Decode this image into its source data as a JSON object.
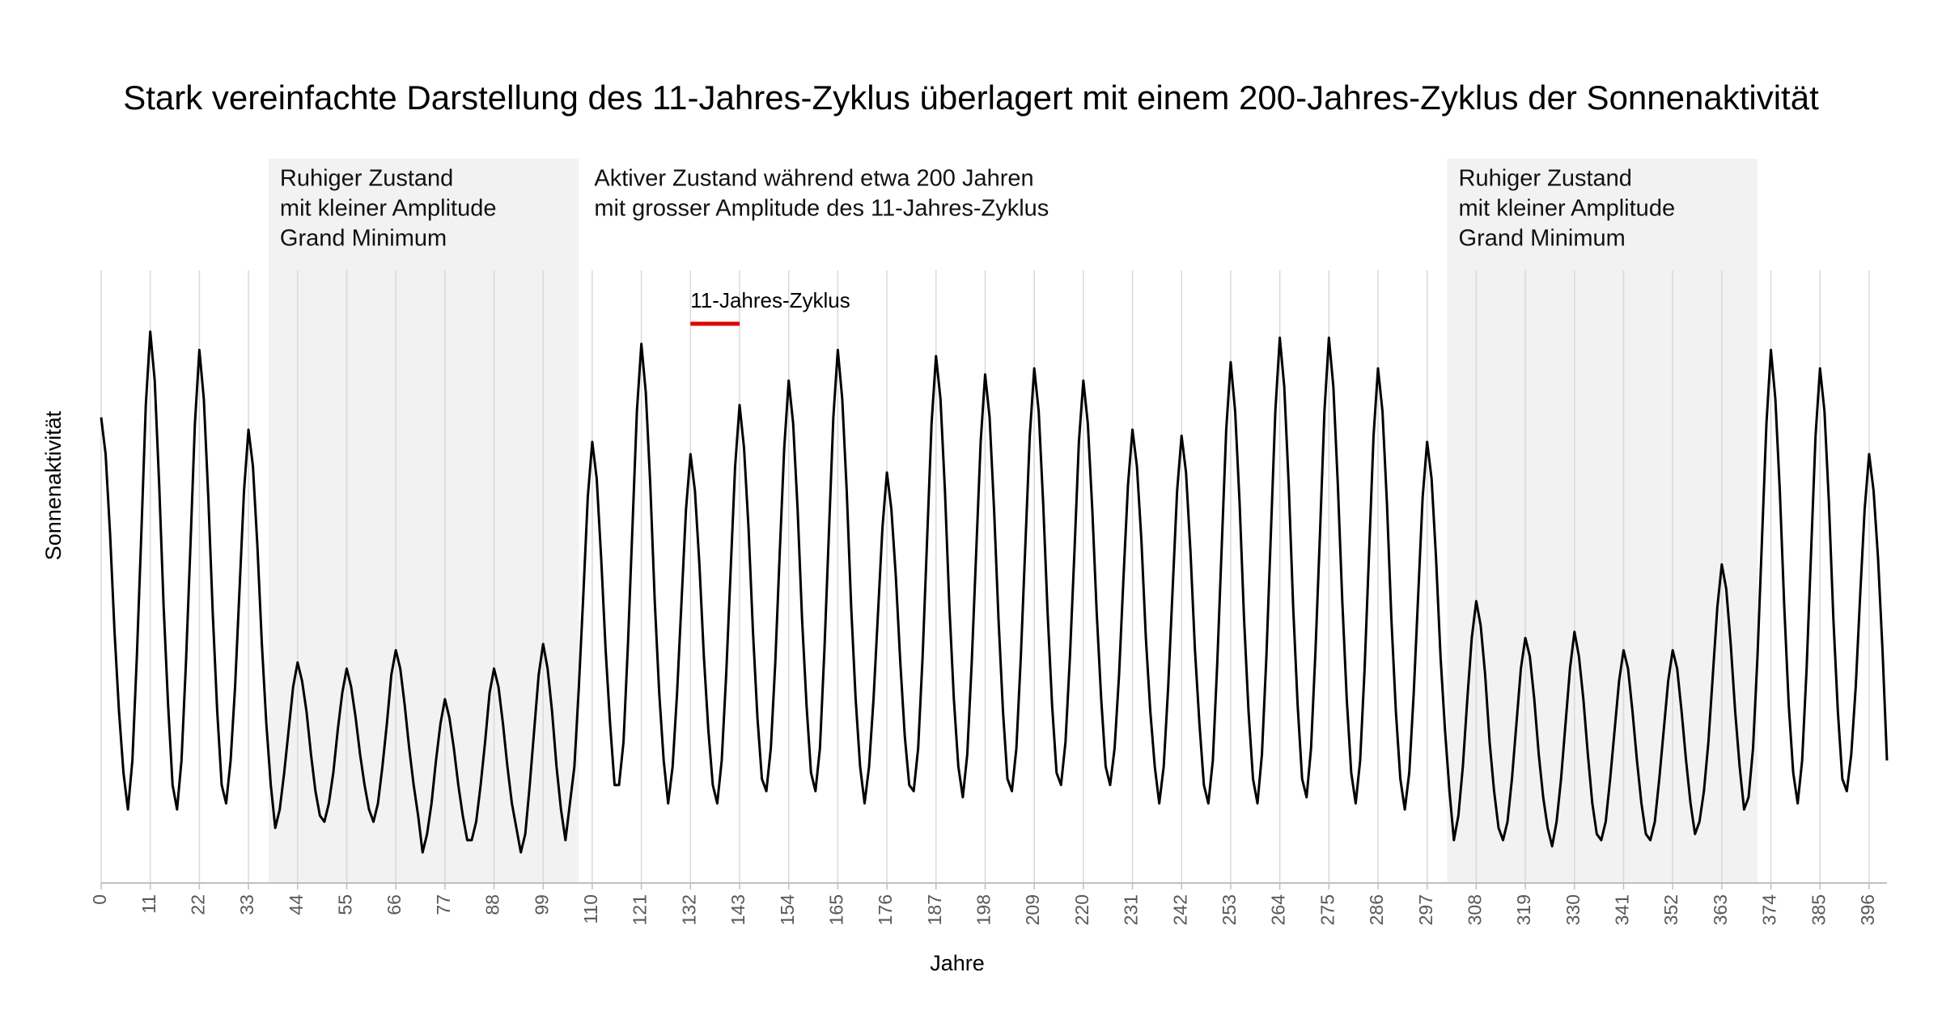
{
  "chart_data": {
    "type": "line",
    "title": "Stark vereinfachte Darstellung des 11-Jahres-Zyklus überlagert mit einem 200-Jahres-Zyklus der Sonnenaktivität",
    "xlabel": "Jahre",
    "ylabel": "Sonnenaktivität",
    "xlim": [
      0,
      400
    ],
    "ylim": [
      0,
      100
    ],
    "xticks": [
      0,
      11,
      22,
      33,
      44,
      55,
      66,
      77,
      88,
      99,
      110,
      121,
      132,
      143,
      154,
      165,
      176,
      187,
      198,
      209,
      220,
      231,
      242,
      253,
      264,
      275,
      286,
      297,
      308,
      319,
      330,
      341,
      352,
      363,
      374,
      385,
      396
    ],
    "grid": true,
    "color": "#000000",
    "regions": [
      {
        "x0": 37.5,
        "x1": 107,
        "color": "#f2f2f2",
        "lines": [
          "Ruhiger Zustand",
          "mit kleiner Amplitude",
          "Grand Minimum"
        ]
      },
      {
        "x0": 301.5,
        "x1": 371,
        "color": "#f2f2f2",
        "lines": [
          "Ruhiger Zustand",
          "mit kleiner Amplitude",
          "Grand Minimum"
        ]
      }
    ],
    "active_note": {
      "lines": [
        "Aktiver Zustand während etwa 200 Jahren",
        "mit grosser Amplitude des 11-Jahres-Zyklus"
      ]
    },
    "cycle_marker": {
      "label": "11-Jahres-Zyklus",
      "x0": 132,
      "x1": 143,
      "color": "#e00000"
    },
    "x": [
      0,
      1,
      2,
      3,
      4,
      5,
      6,
      7,
      8,
      9,
      10,
      11,
      12,
      13,
      14,
      15,
      16,
      17,
      18,
      19,
      20,
      21,
      22,
      23,
      24,
      25,
      26,
      27,
      28,
      29,
      30,
      31,
      32,
      33,
      34,
      35,
      36,
      37,
      38,
      39,
      40,
      41,
      42,
      43,
      44,
      45,
      46,
      47,
      48,
      49,
      50,
      51,
      52,
      53,
      54,
      55,
      56,
      57,
      58,
      59,
      60,
      61,
      62,
      63,
      64,
      65,
      66,
      67,
      68,
      69,
      70,
      71,
      72,
      73,
      74,
      75,
      76,
      77,
      78,
      79,
      80,
      81,
      82,
      83,
      84,
      85,
      86,
      87,
      88,
      89,
      90,
      91,
      92,
      93,
      94,
      95,
      96,
      97,
      98,
      99,
      100,
      101,
      102,
      103,
      104,
      105,
      106,
      107,
      108,
      109,
      110,
      111,
      112,
      113,
      114,
      115,
      116,
      117,
      118,
      119,
      120,
      121,
      122,
      123,
      124,
      125,
      126,
      127,
      128,
      129,
      130,
      131,
      132,
      133,
      134,
      135,
      136,
      137,
      138,
      139,
      140,
      141,
      142,
      143,
      144,
      145,
      146,
      147,
      148,
      149,
      150,
      151,
      152,
      153,
      154,
      155,
      156,
      157,
      158,
      159,
      160,
      161,
      162,
      163,
      164,
      165,
      166,
      167,
      168,
      169,
      170,
      171,
      172,
      173,
      174,
      175,
      176,
      177,
      178,
      179,
      180,
      181,
      182,
      183,
      184,
      185,
      186,
      187,
      188,
      189,
      190,
      191,
      192,
      193,
      194,
      195,
      196,
      197,
      198,
      199,
      200,
      201,
      202,
      203,
      204,
      205,
      206,
      207,
      208,
      209,
      210,
      211,
      212,
      213,
      214,
      215,
      216,
      217,
      218,
      219,
      220,
      221,
      222,
      223,
      224,
      225,
      226,
      227,
      228,
      229,
      230,
      231,
      232,
      233,
      234,
      235,
      236,
      237,
      238,
      239,
      240,
      241,
      242,
      243,
      244,
      245,
      246,
      247,
      248,
      249,
      250,
      251,
      252,
      253,
      254,
      255,
      256,
      257,
      258,
      259,
      260,
      261,
      262,
      263,
      264,
      265,
      266,
      267,
      268,
      269,
      270,
      271,
      272,
      273,
      274,
      275,
      276,
      277,
      278,
      279,
      280,
      281,
      282,
      283,
      284,
      285,
      286,
      287,
      288,
      289,
      290,
      291,
      292,
      293,
      294,
      295,
      296,
      297,
      298,
      299,
      300,
      301,
      302,
      303,
      304,
      305,
      306,
      307,
      308,
      309,
      310,
      311,
      312,
      313,
      314,
      315,
      316,
      317,
      318,
      319,
      320,
      321,
      322,
      323,
      324,
      325,
      326,
      327,
      328,
      329,
      330,
      331,
      332,
      333,
      334,
      335,
      336,
      337,
      338,
      339,
      340,
      341,
      342,
      343,
      344,
      345,
      346,
      347,
      348,
      349,
      350,
      351,
      352,
      353,
      354,
      355,
      356,
      357,
      358,
      359,
      360,
      361,
      362,
      363,
      364,
      365,
      366,
      367,
      368,
      369,
      370,
      371,
      372,
      373,
      374,
      375,
      376,
      377,
      378,
      379,
      380,
      381,
      382,
      383,
      384,
      385,
      386,
      387,
      388,
      389,
      390,
      391,
      392,
      393,
      394,
      395,
      396,
      397,
      398,
      399,
      400
    ],
    "values": [
      76,
      70,
      57,
      41,
      28,
      18,
      12,
      20,
      37,
      57,
      78,
      90,
      82,
      65,
      45,
      29,
      16,
      12,
      20,
      36,
      55,
      75,
      87,
      79,
      63,
      44,
      28,
      16,
      13,
      20,
      32,
      48,
      64,
      74,
      68,
      55,
      39,
      26,
      16,
      9,
      12,
      18,
      25,
      32,
      36,
      33,
      28,
      21,
      15,
      11,
      10,
      13,
      18,
      25,
      31,
      35,
      32,
      27,
      21,
      16,
      12,
      10,
      13,
      19,
      26,
      34,
      38,
      35,
      29,
      22,
      16,
      11,
      5,
      8,
      13,
      20,
      26,
      30,
      27,
      22,
      16,
      11,
      7,
      7,
      10,
      16,
      23,
      31,
      35,
      32,
      26,
      19,
      13,
      9,
      5,
      8,
      16,
      25,
      34,
      39,
      35,
      28,
      19,
      12,
      7,
      13,
      19,
      32,
      47,
      63,
      72,
      66,
      53,
      38,
      26,
      16,
      16,
      23,
      39,
      58,
      77,
      88,
      80,
      65,
      46,
      31,
      20,
      13,
      19,
      31,
      46,
      61,
      70,
      64,
      52,
      37,
      25,
      16,
      13,
      20,
      34,
      51,
      68,
      78,
      71,
      58,
      41,
      27,
      17,
      15,
      22,
      36,
      54,
      71,
      82,
      75,
      61,
      43,
      29,
      18,
      15,
      22,
      38,
      57,
      76,
      87,
      79,
      64,
      45,
      30,
      19,
      13,
      19,
      30,
      44,
      58,
      67,
      61,
      50,
      36,
      24,
      16,
      15,
      22,
      37,
      56,
      75,
      86,
      79,
      64,
      45,
      30,
      19,
      14,
      21,
      36,
      54,
      72,
      83,
      76,
      61,
      43,
      28,
      17,
      15,
      22,
      37,
      55,
      73,
      84,
      77,
      62,
      44,
      29,
      18,
      16,
      23,
      37,
      54,
      72,
      82,
      75,
      61,
      44,
      30,
      19,
      16,
      22,
      34,
      50,
      65,
      74,
      68,
      56,
      40,
      28,
      19,
      13,
      19,
      32,
      48,
      64,
      73,
      67,
      54,
      38,
      26,
      16,
      13,
      20,
      36,
      55,
      74,
      85,
      77,
      62,
      43,
      28,
      17,
      13,
      21,
      37,
      57,
      77,
      89,
      81,
      65,
      45,
      29,
      17,
      14,
      22,
      38,
      57,
      77,
      89,
      81,
      65,
      46,
      30,
      18,
      13,
      20,
      35,
      54,
      73,
      84,
      77,
      62,
      43,
      28,
      17,
      12,
      18,
      31,
      47,
      63,
      72,
      66,
      53,
      37,
      25,
      15,
      7,
      11,
      19,
      30,
      40,
      46,
      42,
      34,
      23,
      15,
      9,
      7,
      10,
      17,
      26,
      35,
      40,
      37,
      30,
      21,
      14,
      9,
      6,
      10,
      17,
      26,
      35,
      41,
      37,
      30,
      21,
      13,
      8,
      7,
      10,
      17,
      25,
      33,
      38,
      35,
      28,
      20,
      13,
      8,
      7,
      10,
      17,
      25,
      33,
      38,
      35,
      28,
      20,
      13,
      8,
      10,
      15,
      23,
      34,
      45,
      52,
      48,
      39,
      28,
      19,
      12,
      14,
      22,
      37,
      56,
      75,
      87,
      79,
      64,
      45,
      29,
      18,
      13,
      20,
      35,
      54,
      73,
      84,
      77,
      62,
      43,
      28,
      17,
      15,
      21,
      32,
      47,
      61,
      70,
      64,
      53,
      38,
      20
    ]
  }
}
